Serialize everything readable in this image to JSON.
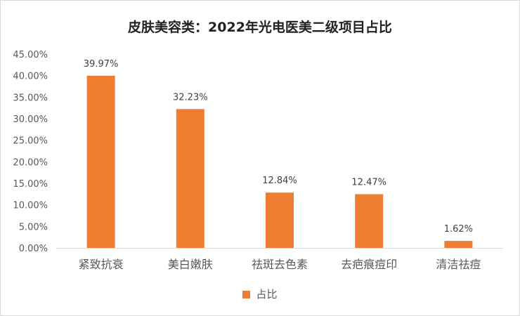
{
  "chart_data": {
    "type": "bar",
    "title": "皮肤美容类：2022年光电医美二级项目占比",
    "xlabel": "",
    "ylabel": "",
    "categories": [
      "紧致抗衰",
      "美白嫩肤",
      "祛斑去色素",
      "去疤痕痘印",
      "清洁祛痘"
    ],
    "series": [
      {
        "name": "占比",
        "values": [
          39.97,
          32.23,
          12.84,
          12.47,
          1.62
        ],
        "color": "#ED7D31"
      }
    ],
    "data_labels": [
      "39.97%",
      "32.23%",
      "12.84%",
      "12.47%",
      "1.62%"
    ],
    "y_ticks": [
      "0.00%",
      "5.00%",
      "10.00%",
      "15.00%",
      "20.00%",
      "25.00%",
      "30.00%",
      "35.00%",
      "40.00%",
      "45.00%"
    ],
    "ylim": [
      0,
      45
    ],
    "grid": false,
    "legend_position": "bottom"
  }
}
